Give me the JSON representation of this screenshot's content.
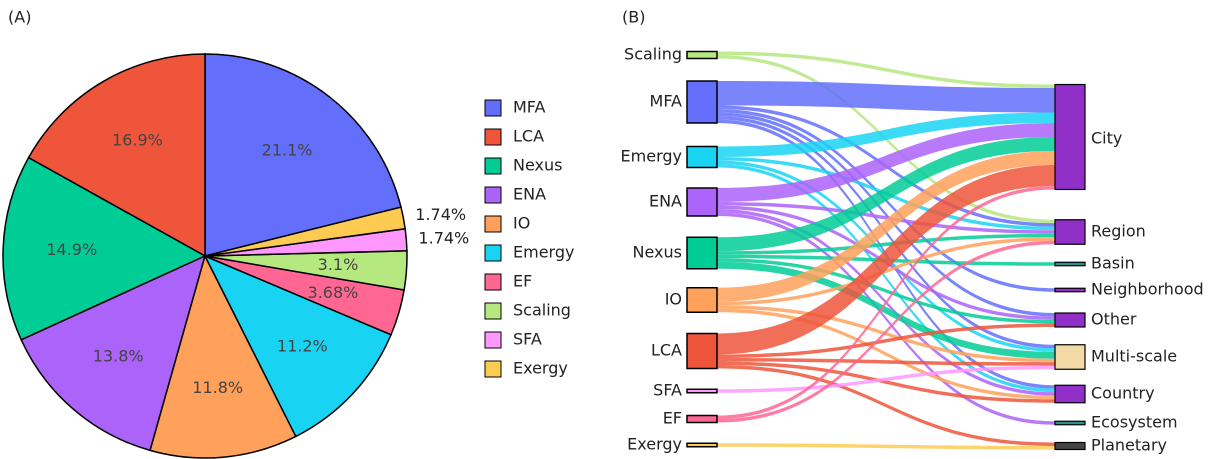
{
  "chart_data": [
    {
      "type": "pie",
      "panel_label": "(A)",
      "categories": [
        "MFA",
        "LCA",
        "Nexus",
        "ENA",
        "IO",
        "Emergy",
        "EF",
        "Scaling",
        "SFA",
        "Exergy"
      ],
      "values": [
        21.1,
        16.9,
        14.9,
        13.8,
        11.8,
        11.2,
        3.68,
        3.1,
        1.74,
        1.74
      ],
      "value_labels": [
        "21.1%",
        "16.9%",
        "14.9%",
        "13.8%",
        "11.8%",
        "11.2%",
        "3.68%",
        "3.1%",
        "1.74%",
        "1.74%"
      ],
      "colors": [
        "#636efa",
        "#ef553b",
        "#00cc96",
        "#ab63fa",
        "#ffa15a",
        "#19d3f3",
        "#ff6692",
        "#b6e880",
        "#ff97ff",
        "#fecb52"
      ]
    },
    {
      "type": "sankey",
      "panel_label": "(B)",
      "sources": [
        {
          "name": "Scaling",
          "color": "#b6e880"
        },
        {
          "name": "MFA",
          "color": "#636efa"
        },
        {
          "name": "Emergy",
          "color": "#19d3f3"
        },
        {
          "name": "ENA",
          "color": "#ab63fa"
        },
        {
          "name": "Nexus",
          "color": "#00cc96"
        },
        {
          "name": "IO",
          "color": "#ffa15a"
        },
        {
          "name": "LCA",
          "color": "#ef553b"
        },
        {
          "name": "SFA",
          "color": "#ff97ff"
        },
        {
          "name": "EF",
          "color": "#ff6692"
        },
        {
          "name": "Exergy",
          "color": "#fecb52"
        }
      ],
      "targets": [
        {
          "name": "City",
          "color": "#9130c9"
        },
        {
          "name": "Region",
          "color": "#9130c9"
        },
        {
          "name": "Basin",
          "color": "#2a8f8f"
        },
        {
          "name": "Neighborhood",
          "color": "#9130c9"
        },
        {
          "name": "Other",
          "color": "#9130c9"
        },
        {
          "name": "Multi-scale",
          "color": "#f2d9a6"
        },
        {
          "name": "Country",
          "color": "#9130c9"
        },
        {
          "name": "Ecosystem",
          "color": "#2a8f8f"
        },
        {
          "name": "Planetary",
          "color": "#444444"
        }
      ],
      "links": [
        {
          "source": "Scaling",
          "target": "City",
          "value": 1
        },
        {
          "source": "Scaling",
          "target": "Region",
          "value": 1
        },
        {
          "source": "MFA",
          "target": "City",
          "value": 7
        },
        {
          "source": "MFA",
          "target": "Region",
          "value": 1
        },
        {
          "source": "MFA",
          "target": "Neighborhood",
          "value": 1
        },
        {
          "source": "MFA",
          "target": "Other",
          "value": 1
        },
        {
          "source": "MFA",
          "target": "Multi-scale",
          "value": 1
        },
        {
          "source": "MFA",
          "target": "Country",
          "value": 1
        },
        {
          "source": "Emergy",
          "target": "City",
          "value": 3
        },
        {
          "source": "Emergy",
          "target": "Region",
          "value": 1
        },
        {
          "source": "Emergy",
          "target": "Multi-scale",
          "value": 1
        },
        {
          "source": "Emergy",
          "target": "Country",
          "value": 1
        },
        {
          "source": "ENA",
          "target": "City",
          "value": 4
        },
        {
          "source": "ENA",
          "target": "Region",
          "value": 1
        },
        {
          "source": "ENA",
          "target": "Other",
          "value": 1
        },
        {
          "source": "ENA",
          "target": "Country",
          "value": 1
        },
        {
          "source": "ENA",
          "target": "Ecosystem",
          "value": 1
        },
        {
          "source": "Nexus",
          "target": "City",
          "value": 4
        },
        {
          "source": "Nexus",
          "target": "Region",
          "value": 1
        },
        {
          "source": "Nexus",
          "target": "Basin",
          "value": 1
        },
        {
          "source": "Nexus",
          "target": "Other",
          "value": 1
        },
        {
          "source": "Nexus",
          "target": "Multi-scale",
          "value": 2
        },
        {
          "source": "IO",
          "target": "City",
          "value": 4
        },
        {
          "source": "IO",
          "target": "Region",
          "value": 1
        },
        {
          "source": "IO",
          "target": "Multi-scale",
          "value": 1
        },
        {
          "source": "IO",
          "target": "Country",
          "value": 1
        },
        {
          "source": "LCA",
          "target": "City",
          "value": 6
        },
        {
          "source": "LCA",
          "target": "Other",
          "value": 1
        },
        {
          "source": "LCA",
          "target": "Multi-scale",
          "value": 1
        },
        {
          "source": "LCA",
          "target": "Country",
          "value": 1
        },
        {
          "source": "LCA",
          "target": "Planetary",
          "value": 1
        },
        {
          "source": "SFA",
          "target": "Multi-scale",
          "value": 1
        },
        {
          "source": "EF",
          "target": "City",
          "value": 1
        },
        {
          "source": "EF",
          "target": "Region",
          "value": 1
        },
        {
          "source": "Exergy",
          "target": "Planetary",
          "value": 1
        }
      ]
    }
  ]
}
